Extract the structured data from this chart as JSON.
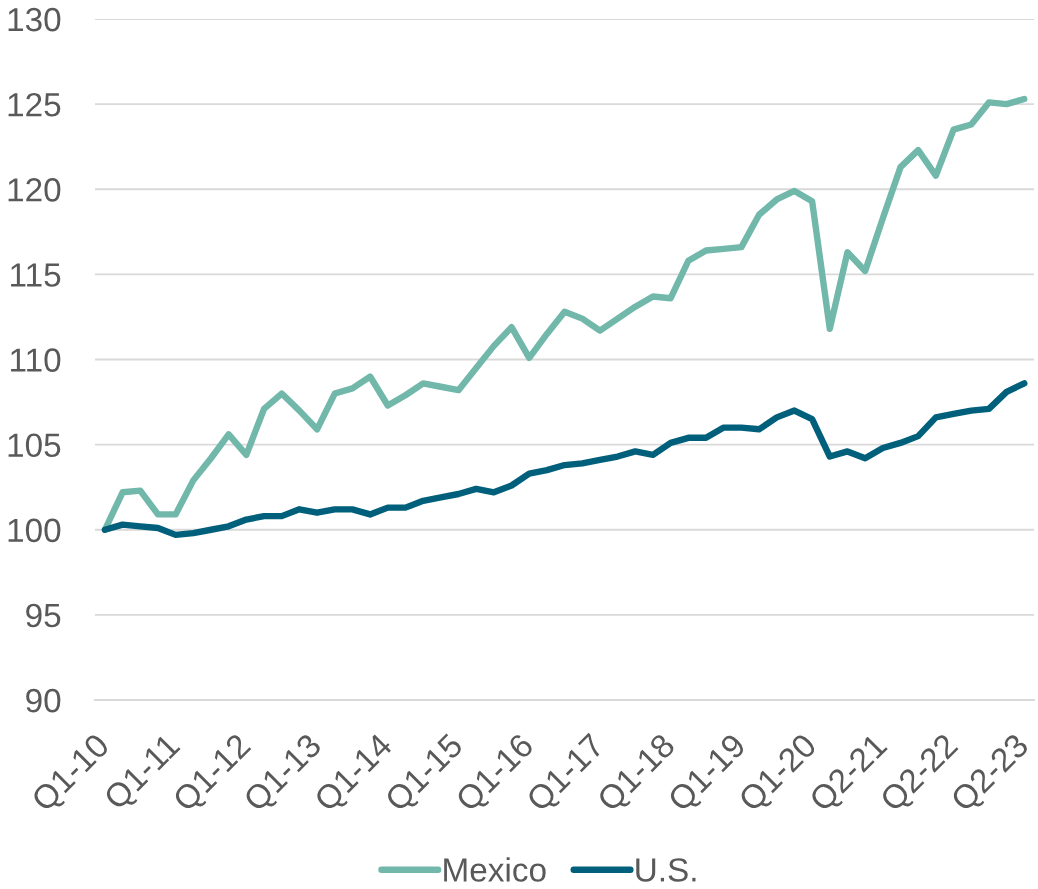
{
  "chart_data": {
    "type": "line",
    "categories": [
      "Q1-10",
      null,
      null,
      null,
      "Q1-11",
      null,
      null,
      null,
      "Q1-12",
      null,
      null,
      null,
      "Q1-13",
      null,
      null,
      null,
      "Q1-14",
      null,
      null,
      null,
      "Q1-15",
      null,
      null,
      null,
      "Q1-16",
      null,
      null,
      null,
      "Q1-17",
      null,
      null,
      null,
      "Q1-18",
      null,
      null,
      null,
      "Q1-19",
      null,
      null,
      null,
      "Q1-20",
      null,
      null,
      null,
      "Q2-21",
      null,
      null,
      null,
      "Q2-22",
      null,
      null,
      null,
      "Q2-23"
    ],
    "series": [
      {
        "name": "Mexico",
        "color": "#71b8ab",
        "values": [
          100.0,
          102.2,
          102.3,
          100.9,
          100.9,
          102.9,
          104.2,
          105.6,
          104.4,
          107.1,
          108.0,
          107.0,
          105.9,
          108.0,
          108.3,
          109.0,
          107.3,
          107.9,
          108.6,
          108.4,
          108.2,
          109.5,
          110.8,
          111.9,
          110.1,
          111.5,
          112.8,
          112.4,
          111.7,
          112.4,
          113.1,
          113.7,
          113.6,
          115.8,
          116.4,
          116.5,
          116.6,
          118.5,
          119.4,
          119.9,
          119.3,
          111.8,
          116.3,
          115.2,
          118.3,
          121.3,
          122.3,
          120.8,
          123.5,
          123.8,
          125.1,
          125.0,
          125.3
        ]
      },
      {
        "name": "U.S.",
        "color": "#005f7a",
        "values": [
          100.0,
          100.3,
          100.2,
          100.1,
          99.7,
          99.8,
          100.0,
          100.2,
          100.6,
          100.8,
          100.8,
          101.2,
          101.0,
          101.2,
          101.2,
          100.9,
          101.3,
          101.3,
          101.7,
          101.9,
          102.1,
          102.4,
          102.2,
          102.6,
          103.3,
          103.5,
          103.8,
          103.9,
          104.1,
          104.3,
          104.6,
          104.4,
          105.1,
          105.4,
          105.4,
          106.0,
          106.0,
          105.9,
          106.6,
          107.0,
          106.5,
          104.3,
          104.6,
          104.2,
          104.8,
          105.1,
          105.5,
          106.6,
          106.8,
          107.0,
          107.1,
          108.1,
          108.6
        ]
      }
    ],
    "ylim": [
      90,
      130
    ],
    "yticks": [
      90,
      95,
      100,
      105,
      110,
      115,
      120,
      125,
      130
    ],
    "grid": "y",
    "legend": "bottom",
    "line_style": "solid"
  }
}
